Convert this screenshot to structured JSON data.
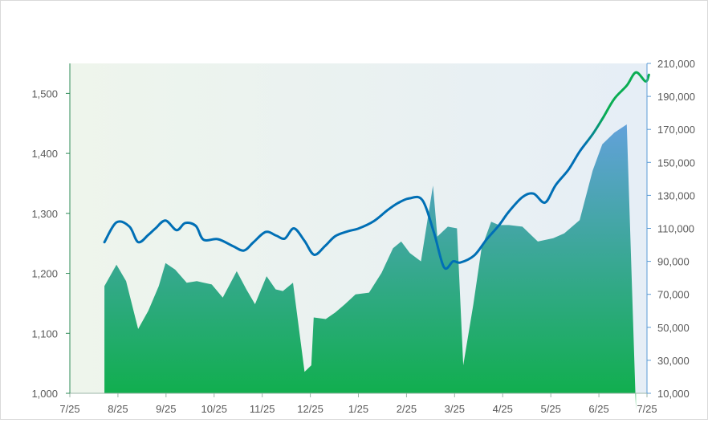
{
  "chart_data": {
    "type": "area-line-combo",
    "title": "",
    "x_tick_labels": [
      "7/25",
      "8/25",
      "9/25",
      "10/25",
      "11/25",
      "12/25",
      "1/25",
      "2/25",
      "3/25",
      "4/25",
      "5/25",
      "6/25",
      "7/25"
    ],
    "left_axis": {
      "ylim": [
        1000,
        1550
      ],
      "tick_values": [
        1000,
        1100,
        1200,
        1300,
        1400,
        1500
      ],
      "tick_labels": [
        "1,000",
        "1,100",
        "1,200",
        "1,300",
        "1,400",
        "1,500"
      ]
    },
    "right_axis": {
      "ylim": [
        10000,
        210000
      ],
      "tick_values": [
        10000,
        30000,
        50000,
        70000,
        90000,
        110000,
        130000,
        150000,
        170000,
        190000,
        210000
      ],
      "tick_labels": [
        "10,000",
        "30,000",
        "50,000",
        "70,000",
        "90,000",
        "110,000",
        "130,000",
        "150,000",
        "170,000",
        "190,000",
        "210,000"
      ]
    },
    "area_series": {
      "axis": "right",
      "x": [
        0.72,
        0.97,
        1.17,
        1.42,
        1.63,
        1.85,
        1.99,
        2.19,
        2.43,
        2.64,
        2.95,
        3.18,
        3.47,
        3.67,
        3.85,
        4.09,
        4.28,
        4.43,
        4.64,
        4.88,
        5.02,
        5.07,
        5.32,
        5.52,
        5.72,
        5.94,
        6.22,
        6.48,
        6.72,
        6.89,
        7.07,
        7.3,
        7.55,
        7.64,
        7.86,
        8.05,
        8.18,
        8.39,
        8.56,
        8.76,
        8.92,
        9.13,
        9.41,
        9.73,
        10.05,
        10.28,
        10.6,
        10.87,
        11.07,
        11.32,
        11.58,
        11.77,
        12.06
      ],
      "values": [
        75,
        88,
        78,
        49,
        60,
        75,
        89,
        85,
        77,
        78,
        76,
        68,
        84,
        73,
        64,
        81,
        73,
        72,
        77,
        23,
        27,
        56,
        55,
        59,
        64,
        70,
        71,
        83,
        98,
        102,
        95,
        90,
        136,
        105,
        111,
        110,
        27,
        64,
        98,
        114,
        112,
        112,
        111,
        102,
        104,
        107,
        115,
        145,
        161,
        168,
        173,
        0,
        0
      ]
    },
    "line_series": {
      "axis": "left",
      "x": [
        0.72,
        0.97,
        1.24,
        1.42,
        1.63,
        1.78,
        1.99,
        2.22,
        2.4,
        2.62,
        2.78,
        3.08,
        3.4,
        3.62,
        3.82,
        4.07,
        4.29,
        4.47,
        4.66,
        4.88,
        5.08,
        5.31,
        5.52,
        5.78,
        6.01,
        6.32,
        6.6,
        6.82,
        7.06,
        7.33,
        7.57,
        7.78,
        7.97,
        8.12,
        8.41,
        8.66,
        8.92,
        9.13,
        9.41,
        9.64,
        9.88,
        10.1,
        10.37,
        10.6,
        10.87,
        11.09,
        11.32,
        11.58,
        11.77,
        11.97,
        12.04
      ],
      "values": [
        1252,
        1285,
        1278,
        1252,
        1264,
        1275,
        1288,
        1272,
        1284,
        1279,
        1256,
        1257,
        1245,
        1238,
        1252,
        1269,
        1263,
        1258,
        1275,
        1254,
        1231,
        1246,
        1262,
        1270,
        1275,
        1287,
        1305,
        1317,
        1325,
        1322,
        1268,
        1210,
        1220,
        1218,
        1230,
        1256,
        1280,
        1303,
        1327,
        1333,
        1318,
        1347,
        1373,
        1403,
        1432,
        1460,
        1491,
        1513,
        1535,
        1520,
        1531
      ]
    },
    "colors": {
      "plot_bg_left": "#eef5ec",
      "plot_bg_right": "#e6eef6",
      "area_top": "#62a1da",
      "area_bottom": "#0caf46",
      "line_blue": "#006fb5",
      "line_green": "#0aad53",
      "axis": "#9bb5a7",
      "left_axis_line": "#2e8b57",
      "right_axis_line": "#5b9bd5"
    },
    "grid": false,
    "legend": "none"
  }
}
